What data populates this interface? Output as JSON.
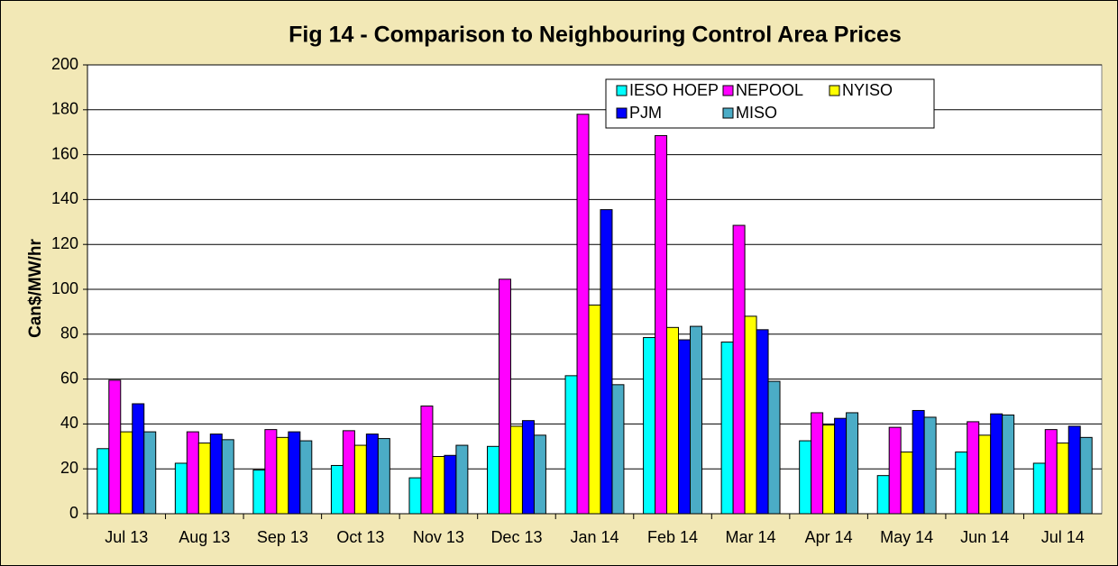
{
  "chart_data": {
    "type": "bar",
    "title": "Fig  14 - Comparison to Neighbouring Control Area Prices",
    "y_label": "Can$/MW/hr",
    "categories": [
      "Jul 13",
      "Aug 13",
      "Sep 13",
      "Oct 13",
      "Nov 13",
      "Dec 13",
      "Jan 14",
      "Feb 14",
      "Mar 14",
      "Apr 14",
      "May 14",
      "Jun 14",
      "Jul 14"
    ],
    "series": [
      {
        "name": "IESO HOEP",
        "color": "#00ffff",
        "values": [
          29,
          22.5,
          19.5,
          21.5,
          16,
          30,
          61.5,
          78.5,
          76.5,
          32.5,
          17,
          27.5,
          22.5
        ]
      },
      {
        "name": "NEPOOL",
        "color": "#ff00ff",
        "values": [
          59.5,
          36.5,
          37.5,
          37,
          48,
          104.5,
          178,
          168.5,
          128.5,
          45,
          38.5,
          41,
          37.5
        ]
      },
      {
        "name": "NYISO",
        "color": "#ffff00",
        "values": [
          36.5,
          31.5,
          34,
          30.5,
          25.5,
          39,
          93,
          83,
          88,
          39.5,
          27.5,
          35,
          31.5
        ]
      },
      {
        "name": "PJM",
        "color": "#0000ff",
        "values": [
          49,
          35.5,
          36.5,
          35.5,
          26,
          41.5,
          135.5,
          77.5,
          82,
          42.5,
          46,
          44.5,
          39
        ]
      },
      {
        "name": "MISO",
        "color": "#4bacc6",
        "values": [
          36.5,
          33,
          32.5,
          33.5,
          30.5,
          35,
          57.5,
          83.5,
          59,
          45,
          43,
          44,
          34
        ]
      }
    ],
    "ylim": [
      0,
      200
    ],
    "yticks": [
      0,
      20,
      40,
      60,
      80,
      100,
      120,
      140,
      160,
      180,
      200
    ],
    "grid": true,
    "legend": "top-right"
  }
}
